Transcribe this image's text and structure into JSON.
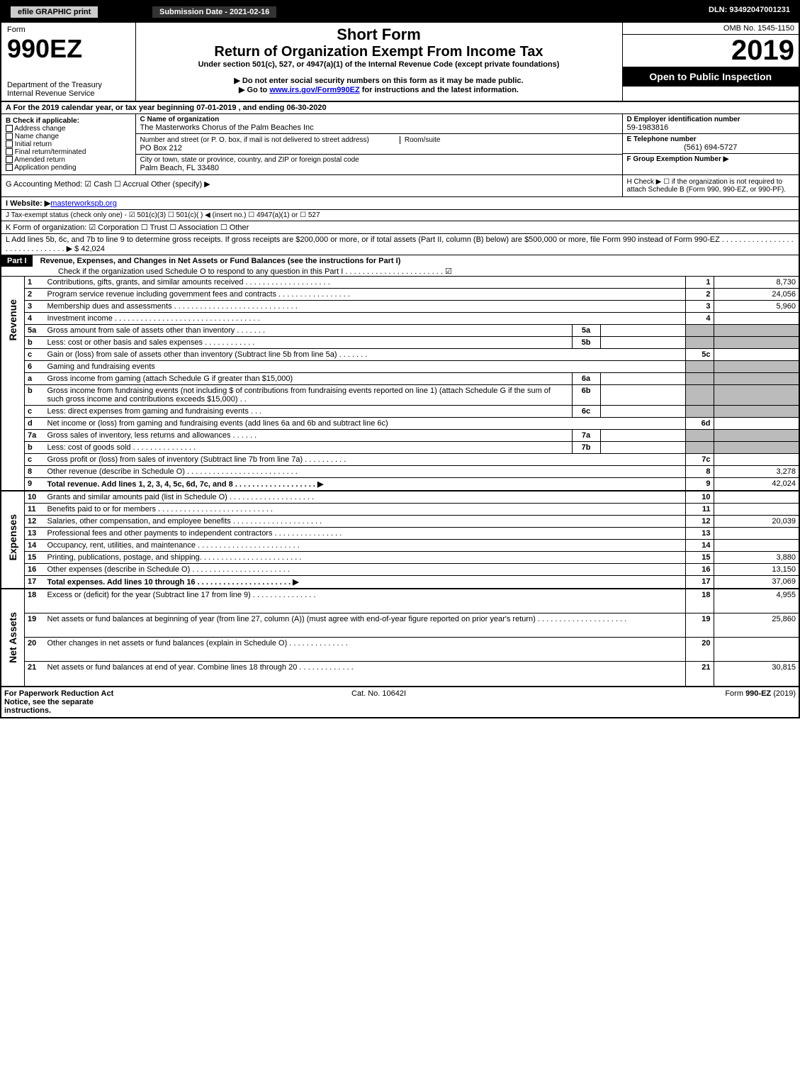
{
  "topbar": {
    "efile": "efile GRAPHIC print",
    "sub_label": "Submission Date - 2021-02-16",
    "dln": "DLN: 93492047001231"
  },
  "header": {
    "form_word": "Form",
    "form_num": "990EZ",
    "dept": "Department of the Treasury",
    "irs": "Internal Revenue Service",
    "short": "Short Form",
    "title": "Return of Organization Exempt From Income Tax",
    "sub1": "Under section 501(c), 527, or 4947(a)(1) of the Internal Revenue Code (except private foundations)",
    "sub2": "▶ Do not enter social security numbers on this form as it may be made public.",
    "sub3_pre": "▶ Go to ",
    "sub3_link": "www.irs.gov/Form990EZ",
    "sub3_post": " for instructions and the latest information.",
    "omb": "OMB No. 1545-1150",
    "year": "2019",
    "open": "Open to Public Inspection"
  },
  "A": "A  For the 2019 calendar year, or tax year beginning 07-01-2019 , and ending 06-30-2020",
  "B": {
    "label": "B  Check if applicable:",
    "opts": [
      "Address change",
      "Name change",
      "Initial return",
      "Final return/terminated",
      "Amended return",
      "Application pending"
    ]
  },
  "C": {
    "label": "C Name of organization",
    "name": "The Masterworks Chorus of the Palm Beaches Inc",
    "street_label": "Number and street (or P. O. box, if mail is not delivered to street address)",
    "room_label": "Room/suite",
    "street": "PO Box 212",
    "city_label": "City or town, state or province, country, and ZIP or foreign postal code",
    "city": "Palm Beach, FL  33480"
  },
  "D": {
    "label": "D Employer identification number",
    "val": "59-1983816"
  },
  "E": {
    "label": "E Telephone number",
    "val": "(561) 694-5727"
  },
  "F": {
    "label": "F Group Exemption Number   ▶"
  },
  "G": "G Accounting Method:   ☑ Cash   ☐ Accrual   Other (specify) ▶",
  "H": "H   Check ▶  ☐  if the organization is not required to attach Schedule B (Form 990, 990-EZ, or 990-PF).",
  "I_pre": "I Website: ▶",
  "I_link": "masterworkspb.org",
  "J": "J Tax-exempt status (check only one) - ☑ 501(c)(3)  ☐ 501(c)(  ) ◀ (insert no.)  ☐ 4947(a)(1) or  ☐ 527",
  "K": "K Form of organization:   ☑ Corporation   ☐ Trust   ☐ Association   ☐ Other",
  "L": "L Add lines 5b, 6c, and 7b to line 9 to determine gross receipts. If gross receipts are $200,000 or more, or if total assets (Part II, column (B) below) are $500,000 or more, file Form 990 instead of Form 990-EZ . . . . . . . . . . . . . . . . . . . . . . . . . . . . . . .   ▶ $ 42,024",
  "part1": {
    "label": "Part I",
    "title": "Revenue, Expenses, and Changes in Net Assets or Fund Balances (see the instructions for Part I)",
    "check": "Check if the organization used Schedule O to respond to any question in this Part I . . . . . . . . . . . . . . . . . . . . . . .   ☑"
  },
  "sections": {
    "revenue": "Revenue",
    "expenses": "Expenses",
    "netassets": "Net Assets"
  },
  "rows": [
    {
      "n": "1",
      "t": "Contributions, gifts, grants, and similar amounts received . . . . . . . . . . . . . . . . . . . .",
      "r": "1",
      "a": "8,730"
    },
    {
      "n": "2",
      "t": "Program service revenue including government fees and contracts . . . . . . . . . . . . . . . . .",
      "r": "2",
      "a": "24,056"
    },
    {
      "n": "3",
      "t": "Membership dues and assessments . . . . . . . . . . . . . . . . . . . . . . . . . . . . .",
      "r": "3",
      "a": "5,960"
    },
    {
      "n": "4",
      "t": "Investment income . . . . . . . . . . . . . . . . . . . . . . . . . . . . . . . . . .",
      "r": "4",
      "a": ""
    },
    {
      "n": "5a",
      "t": "Gross amount from sale of assets other than inventory . . . . . . .",
      "mini_r": "5a",
      "mini_a": "",
      "shade": true,
      "sub": true
    },
    {
      "n": "b",
      "t": "Less: cost or other basis and sales expenses . . . . . . . . . . . .",
      "mini_r": "5b",
      "mini_a": "",
      "shade": true,
      "sub": true
    },
    {
      "n": "c",
      "t": "Gain or (loss) from sale of assets other than inventory (Subtract line 5b from line 5a) . . . . . . .",
      "r": "5c",
      "a": "",
      "sub": true
    },
    {
      "n": "6",
      "t": "Gaming and fundraising events",
      "noamt": true
    },
    {
      "n": "a",
      "t": "Gross income from gaming (attach Schedule G if greater than $15,000)",
      "mini_r": "6a",
      "mini_a": "",
      "shade": true,
      "sub": true
    },
    {
      "n": "b",
      "t": "Gross income from fundraising events (not including $                         of contributions from fundraising events reported on line 1) (attach Schedule G if the sum of such gross income and contributions exceeds $15,000)    . .",
      "mini_r": "6b",
      "mini_a": "",
      "shade": true,
      "sub": true
    },
    {
      "n": "c",
      "t": "Less: direct expenses from gaming and fundraising events     . . .",
      "mini_r": "6c",
      "mini_a": "",
      "shade": true,
      "sub": true
    },
    {
      "n": "d",
      "t": "Net income or (loss) from gaming and fundraising events (add lines 6a and 6b and subtract line 6c)",
      "r": "6d",
      "a": "",
      "sub": true
    },
    {
      "n": "7a",
      "t": "Gross sales of inventory, less returns and allowances . . . . . .",
      "mini_r": "7a",
      "mini_a": "",
      "shade": true
    },
    {
      "n": "b",
      "t": "Less: cost of goods sold            . . . . . . . . . . . . . . .",
      "mini_r": "7b",
      "mini_a": "",
      "shade": true,
      "sub": true
    },
    {
      "n": "c",
      "t": "Gross profit or (loss) from sales of inventory (Subtract line 7b from line 7a) . . . . . . . . . .",
      "r": "7c",
      "a": "",
      "sub": true
    },
    {
      "n": "8",
      "t": "Other revenue (describe in Schedule O) . . . . . . . . . . . . . . . . . . . . . . . . . .",
      "r": "8",
      "a": "3,278"
    },
    {
      "n": "9",
      "t": "Total revenue. Add lines 1, 2, 3, 4, 5c, 6d, 7c, and 8  . . . . . . . . . . . . . . . . . . .   ▶",
      "r": "9",
      "a": "42,024",
      "bold": true
    }
  ],
  "exp_rows": [
    {
      "n": "10",
      "t": "Grants and similar amounts paid (list in Schedule O) . . . . . . . . . . . . . . . . . . . .",
      "r": "10",
      "a": ""
    },
    {
      "n": "11",
      "t": "Benefits paid to or for members     . . . . . . . . . . . . . . . . . . . . . . . . . . .",
      "r": "11",
      "a": ""
    },
    {
      "n": "12",
      "t": "Salaries, other compensation, and employee benefits . . . . . . . . . . . . . . . . . . . . .",
      "r": "12",
      "a": "20,039"
    },
    {
      "n": "13",
      "t": "Professional fees and other payments to independent contractors . . . . . . . . . . . . . . . .",
      "r": "13",
      "a": ""
    },
    {
      "n": "14",
      "t": "Occupancy, rent, utilities, and maintenance . . . . . . . . . . . . . . . . . . . . . . . .",
      "r": "14",
      "a": ""
    },
    {
      "n": "15",
      "t": "Printing, publications, postage, and shipping. . . . . . . . . . . . . . . . . . . . . . . .",
      "r": "15",
      "a": "3,880"
    },
    {
      "n": "16",
      "t": "Other expenses (describe in Schedule O)     . . . . . . . . . . . . . . . . . . . . . . .",
      "r": "16",
      "a": "13,150"
    },
    {
      "n": "17",
      "t": "Total expenses. Add lines 10 through 16     . . . . . . . . . . . . . . . . . . . . . .   ▶",
      "r": "17",
      "a": "37,069",
      "bold": true
    }
  ],
  "na_rows": [
    {
      "n": "18",
      "t": "Excess or (deficit) for the year (Subtract line 17 from line 9)        . . . . . . . . . . . . . . .",
      "r": "18",
      "a": "4,955"
    },
    {
      "n": "19",
      "t": "Net assets or fund balances at beginning of year (from line 27, column (A)) (must agree with end-of-year figure reported on prior year's return) . . . . . . . . . . . . . . . . . . . . .",
      "r": "19",
      "a": "25,860"
    },
    {
      "n": "20",
      "t": "Other changes in net assets or fund balances (explain in Schedule O) . . . . . . . . . . . . . .",
      "r": "20",
      "a": ""
    },
    {
      "n": "21",
      "t": "Net assets or fund balances at end of year. Combine lines 18 through 20 . . . . . . . . . . . . .",
      "r": "21",
      "a": "30,815"
    }
  ],
  "footer": {
    "left": "For Paperwork Reduction Act Notice, see the separate instructions.",
    "mid": "Cat. No. 10642I",
    "right": "Form 990-EZ (2019)"
  }
}
